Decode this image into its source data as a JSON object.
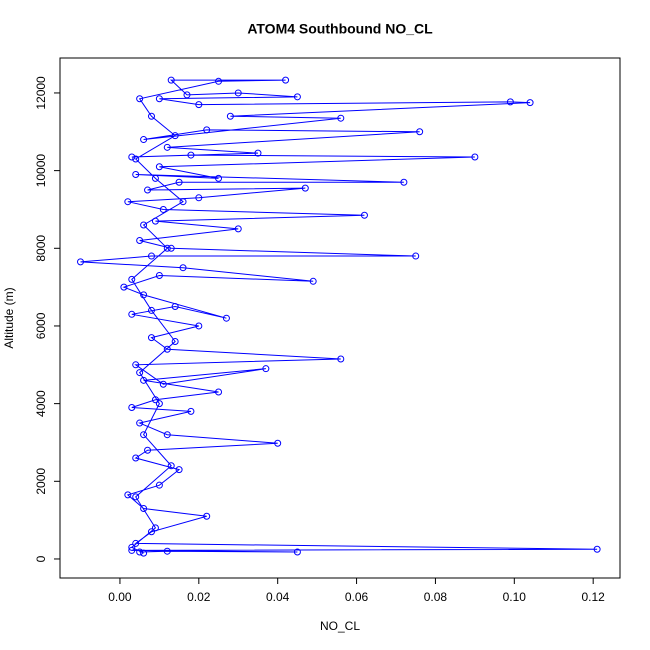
{
  "chart_data": {
    "type": "line",
    "title": "ATOM4 Southbound NO_CL",
    "x_label": "NO_CL",
    "y_label": "Altitude (m)",
    "xlim": [
      -0.0152,
      0.1268
    ],
    "ylim": [
      -490,
      12900
    ],
    "xticks": [
      {
        "value": 0,
        "label": "0.00"
      },
      {
        "value": 0.02,
        "label": "0.02"
      },
      {
        "value": 0.04,
        "label": "0.04"
      },
      {
        "value": 0.06,
        "label": "0.06"
      },
      {
        "value": 0.08,
        "label": "0.08"
      },
      {
        "value": 0.1,
        "label": "0.10"
      },
      {
        "value": 0.12,
        "label": "0.12"
      }
    ],
    "yticks": [
      0,
      2000,
      4000,
      6000,
      8000,
      10000,
      12000
    ],
    "series": [
      {
        "color": "#0000ff",
        "x": [
          0.005,
          0.012,
          0.045,
          0.003,
          0.121,
          0.004,
          0.008,
          0.022,
          0.006,
          0.002,
          0.01,
          0.015,
          0.004,
          0.007,
          0.04,
          0.012,
          0.005,
          0.018,
          0.003,
          0.009,
          0.025,
          0.006,
          0.037,
          0.011,
          0.004,
          0.056,
          0.012,
          0.008,
          0.02,
          0.003,
          0.014,
          0.027,
          0.006,
          0.001,
          0.01,
          0.049,
          0.016,
          -0.01,
          0.008,
          0.075,
          0.013,
          0.005,
          0.03,
          0.009,
          0.062,
          0.011,
          0.002,
          0.02,
          0.047,
          0.007,
          0.015,
          0.072,
          0.004,
          0.025,
          0.01,
          0.09,
          0.018,
          0.003,
          0.035,
          0.012,
          0.076,
          0.022,
          0.006,
          0.056,
          0.028,
          0.104,
          0.099,
          0.02,
          0.01,
          0.045,
          0.03,
          0.017,
          0.013,
          0.042,
          0.025,
          0.005,
          0.008,
          0.014,
          0.004,
          0.009,
          0.016,
          0.006,
          0.012,
          0.003,
          0.008,
          0.014,
          0.005,
          0.01,
          0.006,
          0.013,
          0.004,
          0.009,
          0.003,
          0.006
        ],
        "values": [
          180,
          200,
          180,
          220,
          250,
          400,
          700,
          1100,
          1300,
          1650,
          1900,
          2300,
          2600,
          2800,
          2980,
          3200,
          3500,
          3800,
          3900,
          4100,
          4300,
          4600,
          4900,
          4500,
          5000,
          5150,
          5400,
          5700,
          6000,
          6300,
          6500,
          6200,
          6800,
          7000,
          7300,
          7150,
          7500,
          7650,
          7800,
          7800,
          8000,
          8200,
          8500,
          8700,
          8850,
          9000,
          9200,
          9300,
          9550,
          9500,
          9700,
          9700,
          9900,
          9800,
          10100,
          10350,
          10400,
          10350,
          10450,
          10600,
          11000,
          11050,
          10800,
          11350,
          11400,
          11750,
          11770,
          11700,
          11850,
          11900,
          12000,
          11950,
          12330,
          12330,
          12300,
          11850,
          11400,
          10900,
          10300,
          9800,
          9200,
          8600,
          8000,
          7200,
          6400,
          5600,
          4800,
          4000,
          3200,
          2400,
          1600,
          800,
          300,
          150
        ]
      }
    ]
  }
}
